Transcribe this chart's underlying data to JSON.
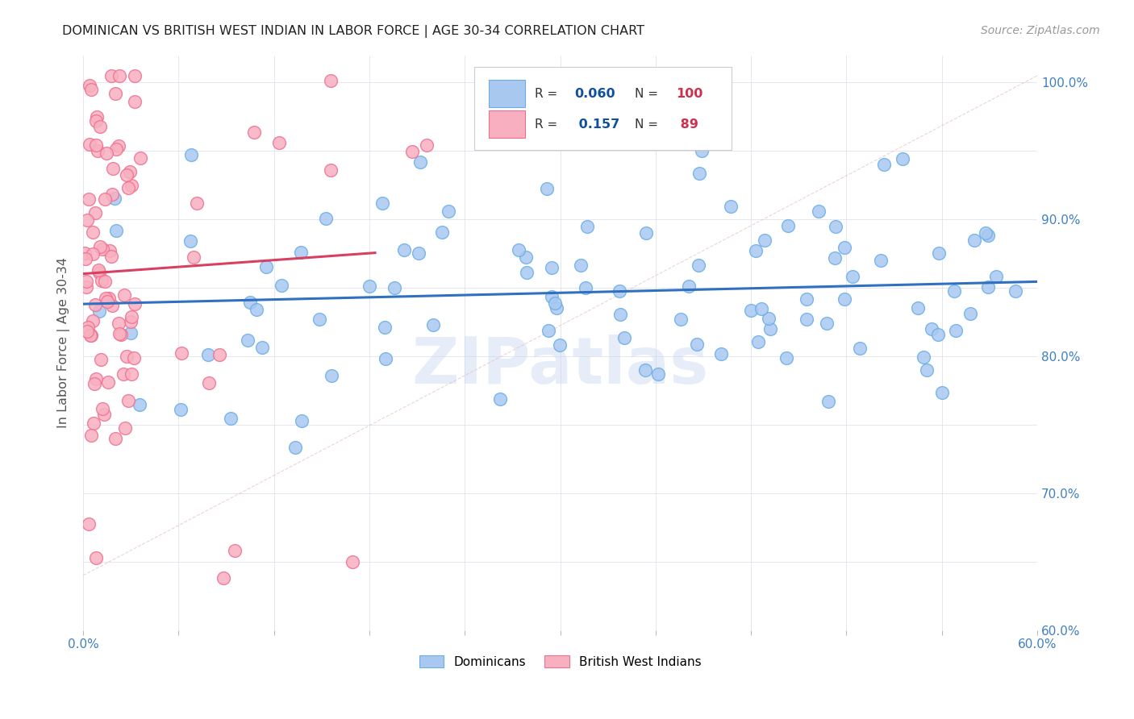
{
  "title": "DOMINICAN VS BRITISH WEST INDIAN IN LABOR FORCE | AGE 30-34 CORRELATION CHART",
  "source_text": "Source: ZipAtlas.com",
  "ylabel": "In Labor Force | Age 30-34",
  "xlim": [
    0.0,
    0.6
  ],
  "ylim": [
    0.6,
    1.02
  ],
  "dominicans_R": 0.06,
  "dominicans_N": 100,
  "bwi_R": 0.157,
  "bwi_N": 89,
  "dominican_color": "#a8c8f0",
  "dominican_edge_color": "#6aaee8",
  "bwi_color": "#f8b0c0",
  "bwi_edge_color": "#f07090",
  "trendline_dom_color": "#3070c0",
  "trendline_bwi_color": "#d84060",
  "diagonal_color": "#cccccc",
  "watermark_color": "#c8d8f0",
  "legend_R_color": "#1050a0",
  "legend_N_color": "#d03050",
  "tick_color": "#4080c0",
  "grid_color": "#d8d8e8",
  "ylabel_color": "#555555",
  "title_color": "#222222",
  "source_color": "#999999"
}
